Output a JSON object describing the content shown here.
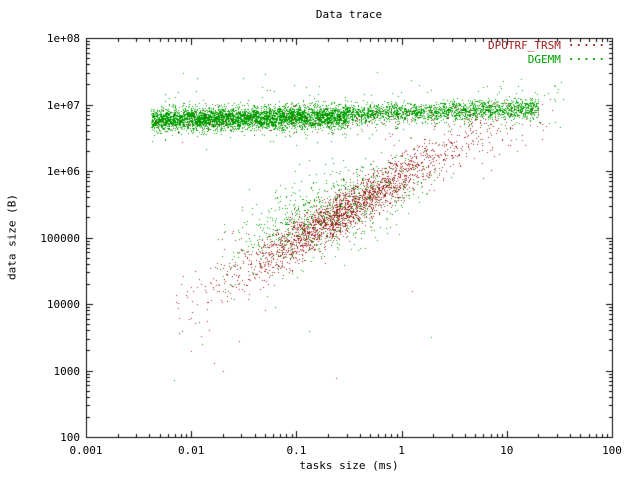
{
  "chart_data": {
    "type": "scatter",
    "title": "Data trace",
    "xlabel": "tasks size (ms)",
    "ylabel": "data size (B)",
    "xscale": "log",
    "yscale": "log",
    "xlim": [
      0.001,
      100
    ],
    "ylim": [
      100,
      100000000
    ],
    "grid": false,
    "legend_position": "top-right-inside",
    "legend_sample": "·····",
    "xticks": [
      "0.001",
      "0.01",
      "0.1",
      "1",
      "10",
      "100"
    ],
    "yticks": [
      "100",
      "1000",
      "10000",
      "100000",
      "1e+06",
      "1e+07",
      "1e+08"
    ],
    "series": [
      {
        "name": "DPOTRF_TRSM",
        "color": "#a02020",
        "marker": "dot",
        "clusters": [
          {
            "count": 2000,
            "x": {
              "dist": "gauss",
              "mean": -0.55,
              "sd": 0.5,
              "min": -2.2,
              "max": 0.95
            },
            "y": {
              "intercept": 5.92,
              "slope": 0.95,
              "sd": 0.17
            }
          },
          {
            "count": 150,
            "x": {
              "dist": "gauss",
              "mean": 0.55,
              "sd": 0.45,
              "min": -0.3,
              "max": 1.45
            },
            "y": {
              "intercept": 6.1,
              "slope": 0.5,
              "sd": 0.22
            }
          },
          {
            "count": 220,
            "x": {
              "dist": "uniform",
              "min": -2.35,
              "max": 1.35
            },
            "y": {
              "intercept": 6.82,
              "slope": 0.04,
              "sd": 0.1
            }
          },
          {
            "count": 90,
            "x": {
              "dist": "uniform",
              "min": -2.15,
              "max": -1.1
            },
            "y": {
              "intercept": 5.92,
              "slope": 0.95,
              "sd": 0.3
            }
          }
        ],
        "outlier_points_logxy": [
          [
            -2.0,
            3.3
          ],
          [
            -1.7,
            3.0
          ],
          [
            -1.55,
            3.45
          ],
          [
            -0.62,
            2.88
          ],
          [
            -1.78,
            3.12
          ],
          [
            0.1,
            4.2
          ]
        ]
      },
      {
        "name": "DGEMM",
        "color": "#00a000",
        "marker": "dot",
        "clusters": [
          {
            "count": 3500,
            "x": {
              "dist": "uniform",
              "min": -2.38,
              "max": 1.3
            },
            "y": {
              "intercept": 6.88,
              "slope": 0.05,
              "sd": 0.075
            }
          },
          {
            "count": 2500,
            "x": {
              "dist": "uniform",
              "min": -2.38,
              "max": -0.5
            },
            "y": {
              "intercept": 6.82,
              "slope": 0.02,
              "sd": 0.09
            }
          },
          {
            "count": 260,
            "x": {
              "dist": "uniform",
              "min": -2.3,
              "max": 1.55
            },
            "y": {
              "intercept": 6.86,
              "slope": 0.03,
              "sd": 0.22
            }
          },
          {
            "count": 900,
            "x": {
              "dist": "gauss",
              "mean": -0.75,
              "sd": 0.45,
              "min": -1.75,
              "max": 0.5
            },
            "y": {
              "intercept": 5.76,
              "slope": 0.55,
              "sd": 0.3
            }
          }
        ],
        "outlier_points_logxy": [
          [
            -2.16,
            2.85
          ],
          [
            -1.9,
            3.4
          ],
          [
            -1.2,
            3.95
          ],
          [
            -0.88,
            3.6
          ],
          [
            0.28,
            3.5
          ]
        ]
      }
    ]
  }
}
